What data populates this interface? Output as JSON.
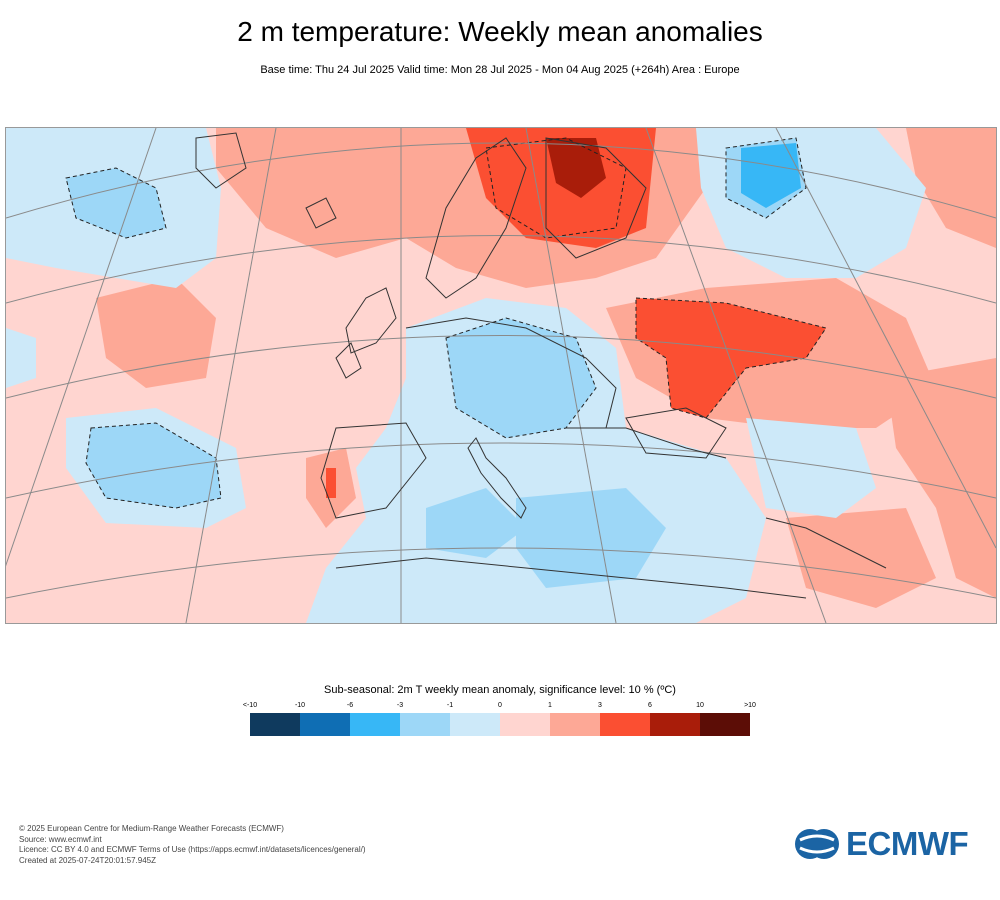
{
  "header": {
    "title": "2 m temperature: Weekly mean anomalies",
    "subtitle": "Base time: Thu 24 Jul 2025 Valid time: Mon 28 Jul 2025 - Mon 04 Aug 2025 (+264h) Area : Europe"
  },
  "map": {
    "region": "Europe"
  },
  "legend": {
    "title": "Sub-seasonal: 2m T weekly mean anomaly, significance level: 10 % (ºC)",
    "ticks": [
      "<-10",
      "-10",
      "-6",
      "-3",
      "-1",
      "0",
      "1",
      "3",
      "6",
      "10",
      ">10"
    ],
    "colors": [
      "#0f3a5e",
      "#0f6eb4",
      "#37b7f6",
      "#9dd7f7",
      "#cde9f9",
      "#ffd5d0",
      "#fda896",
      "#fb4f32",
      "#a91d0a",
      "#5c0d06"
    ]
  },
  "footer": {
    "line1": "© 2025 European Centre for Medium-Range Weather Forecasts (ECMWF)",
    "line2": "Source: www.ecmwf.int",
    "line3": "Licence: CC BY 4.0 and ECMWF Terms of Use (https://apps.ecmwf.int/datasets/licences/general/)",
    "line4": "Created at 2025-07-24T20:01:57.945Z"
  },
  "logo": {
    "text": "ECMWF"
  }
}
